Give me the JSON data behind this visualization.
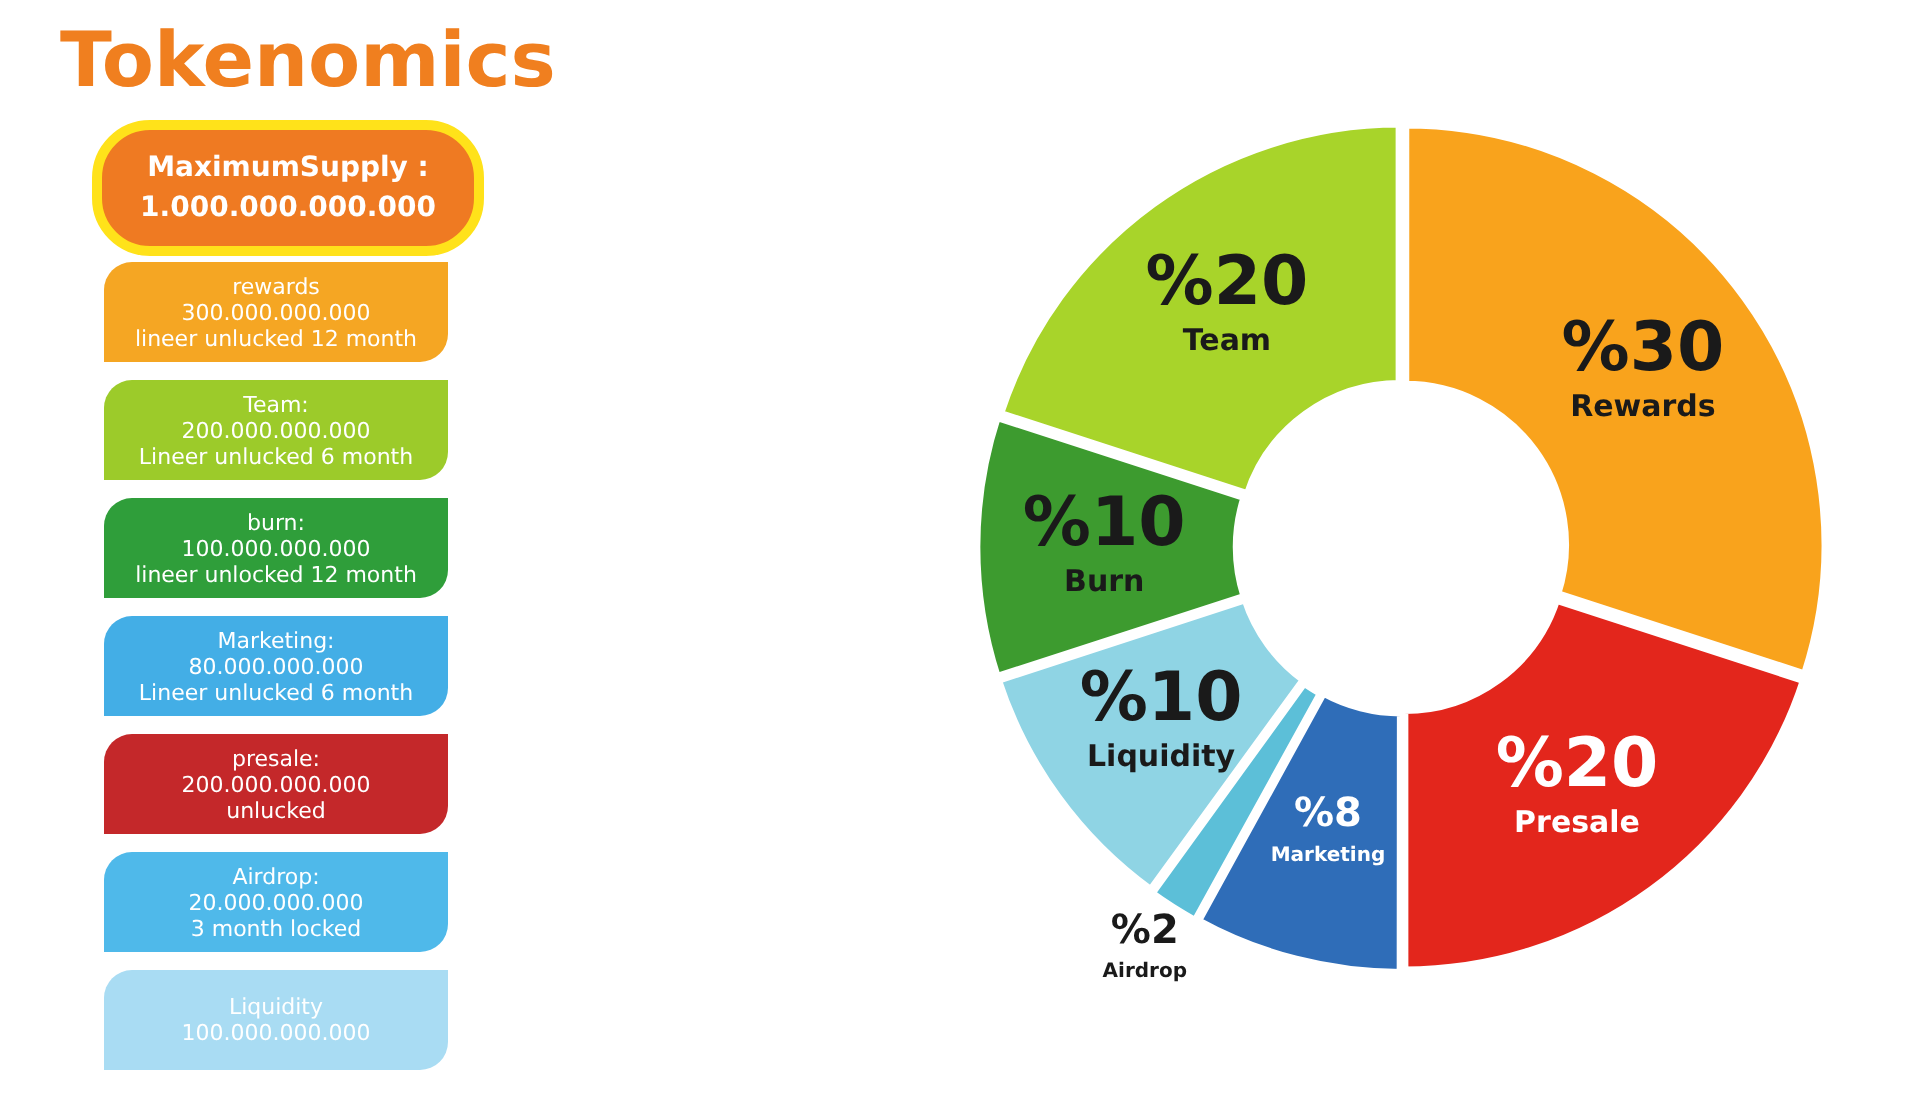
{
  "chart_data": {
    "type": "donut",
    "title": "Tokenomics",
    "categories": [
      "Rewards",
      "Presale",
      "Marketing",
      "Airdrop",
      "Liquidity",
      "Burn",
      "Team"
    ],
    "values": [
      30,
      20,
      8,
      2,
      10,
      10,
      20
    ],
    "value_labels": [
      "%30",
      "%20",
      "%8",
      "%2",
      "%10",
      "%10",
      "%20"
    ],
    "colors": [
      "#f9a31c",
      "#e3261c",
      "#2f6db8",
      "#5cbfd8",
      "#8fd4e4",
      "#3d9b2f",
      "#a8d42a"
    ],
    "legend": false,
    "annotations": [
      "MaximumSupply :\n1.000.000.000.000",
      "rewards\n300.000.000.000\nlineer unlucked 12 month",
      "Team:\n200.000.000.000\nLineer unlucked 6 month",
      "burn:\n100.000.000.000\nlineer unlocked 12 month",
      "Marketing:\n80.000.000.000\nLineer unlucked 6 month",
      "presale:\n200.000.000.000\nunlucked",
      "Airdrop:\n20.000.000.000\n3 month locked",
      "Liquidity\n100.000.000.000"
    ]
  }
}
